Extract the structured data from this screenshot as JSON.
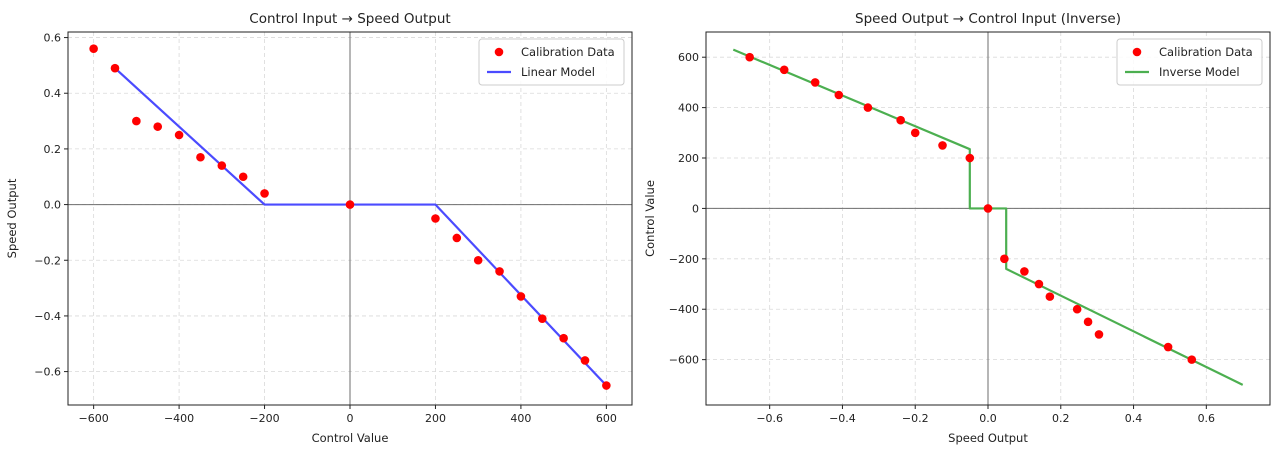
{
  "chart_data": [
    {
      "type": "scatter",
      "title": "Control Input → Speed Output",
      "xlabel": "Control Value",
      "ylabel": "Speed Output",
      "xlim": [
        -660,
        660
      ],
      "ylim": [
        -0.72,
        0.62
      ],
      "xticks": [
        -600,
        -400,
        -200,
        0,
        200,
        400,
        600
      ],
      "xtick_labels": [
        "−600",
        "−400",
        "−200",
        "0",
        "200",
        "400",
        "600"
      ],
      "yticks": [
        -0.6,
        -0.4,
        -0.2,
        0.0,
        0.2,
        0.4,
        0.6
      ],
      "ytick_labels": [
        "−0.6",
        "−0.4",
        "−0.2",
        "0.0",
        "0.2",
        "0.4",
        "0.6"
      ],
      "grid": true,
      "legend": "top-right",
      "series": [
        {
          "name": "Calibration Data",
          "kind": "scatter",
          "color": "#ff0000",
          "x": [
            -600,
            -550,
            -500,
            -450,
            -400,
            -350,
            -300,
            -250,
            -200,
            0,
            200,
            250,
            300,
            350,
            400,
            450,
            500,
            550,
            600
          ],
          "y": [
            0.56,
            0.49,
            0.3,
            0.28,
            0.25,
            0.17,
            0.14,
            0.1,
            0.04,
            0.0,
            -0.05,
            -0.12,
            -0.2,
            -0.24,
            -0.33,
            -0.41,
            -0.48,
            -0.56,
            -0.65
          ]
        },
        {
          "name": "Linear Model",
          "kind": "line",
          "color": "#4b4bff",
          "x": [
            -550,
            -200,
            200,
            600
          ],
          "y": [
            0.49,
            0.0,
            0.0,
            -0.65
          ]
        }
      ]
    },
    {
      "type": "scatter",
      "title": "Speed Output → Control Input (Inverse)",
      "xlabel": "Speed Output",
      "ylabel": "Control Value",
      "xlim": [
        -0.775,
        0.775
      ],
      "ylim": [
        -780,
        700
      ],
      "xticks": [
        -0.6,
        -0.4,
        -0.2,
        0.0,
        0.2,
        0.4,
        0.6
      ],
      "xtick_labels": [
        "−0.6",
        "−0.4",
        "−0.2",
        "0.0",
        "0.2",
        "0.4",
        "0.6"
      ],
      "yticks": [
        -600,
        -400,
        -200,
        0,
        200,
        400,
        600
      ],
      "ytick_labels": [
        "−600",
        "−400",
        "−200",
        "0",
        "200",
        "400",
        "600"
      ],
      "grid": true,
      "legend": "top-right",
      "series": [
        {
          "name": "Calibration Data",
          "kind": "scatter",
          "color": "#ff0000",
          "x": [
            -0.655,
            -0.56,
            -0.475,
            -0.41,
            -0.33,
            -0.24,
            -0.2,
            -0.125,
            -0.05,
            0.0,
            0.045,
            0.1,
            0.14,
            0.17,
            0.245,
            0.275,
            0.305,
            0.495,
            0.56
          ],
          "y": [
            600,
            550,
            500,
            450,
            400,
            350,
            300,
            250,
            200,
            0,
            -200,
            -250,
            -300,
            -350,
            -400,
            -450,
            -500,
            -550,
            -600
          ]
        },
        {
          "name": "Inverse Model",
          "kind": "line",
          "color": "#4caf50",
          "x": [
            -0.7,
            -0.05,
            -0.05,
            0.05,
            0.05,
            0.7
          ],
          "y": [
            630,
            235,
            0,
            0,
            -240,
            -700
          ]
        }
      ]
    }
  ]
}
